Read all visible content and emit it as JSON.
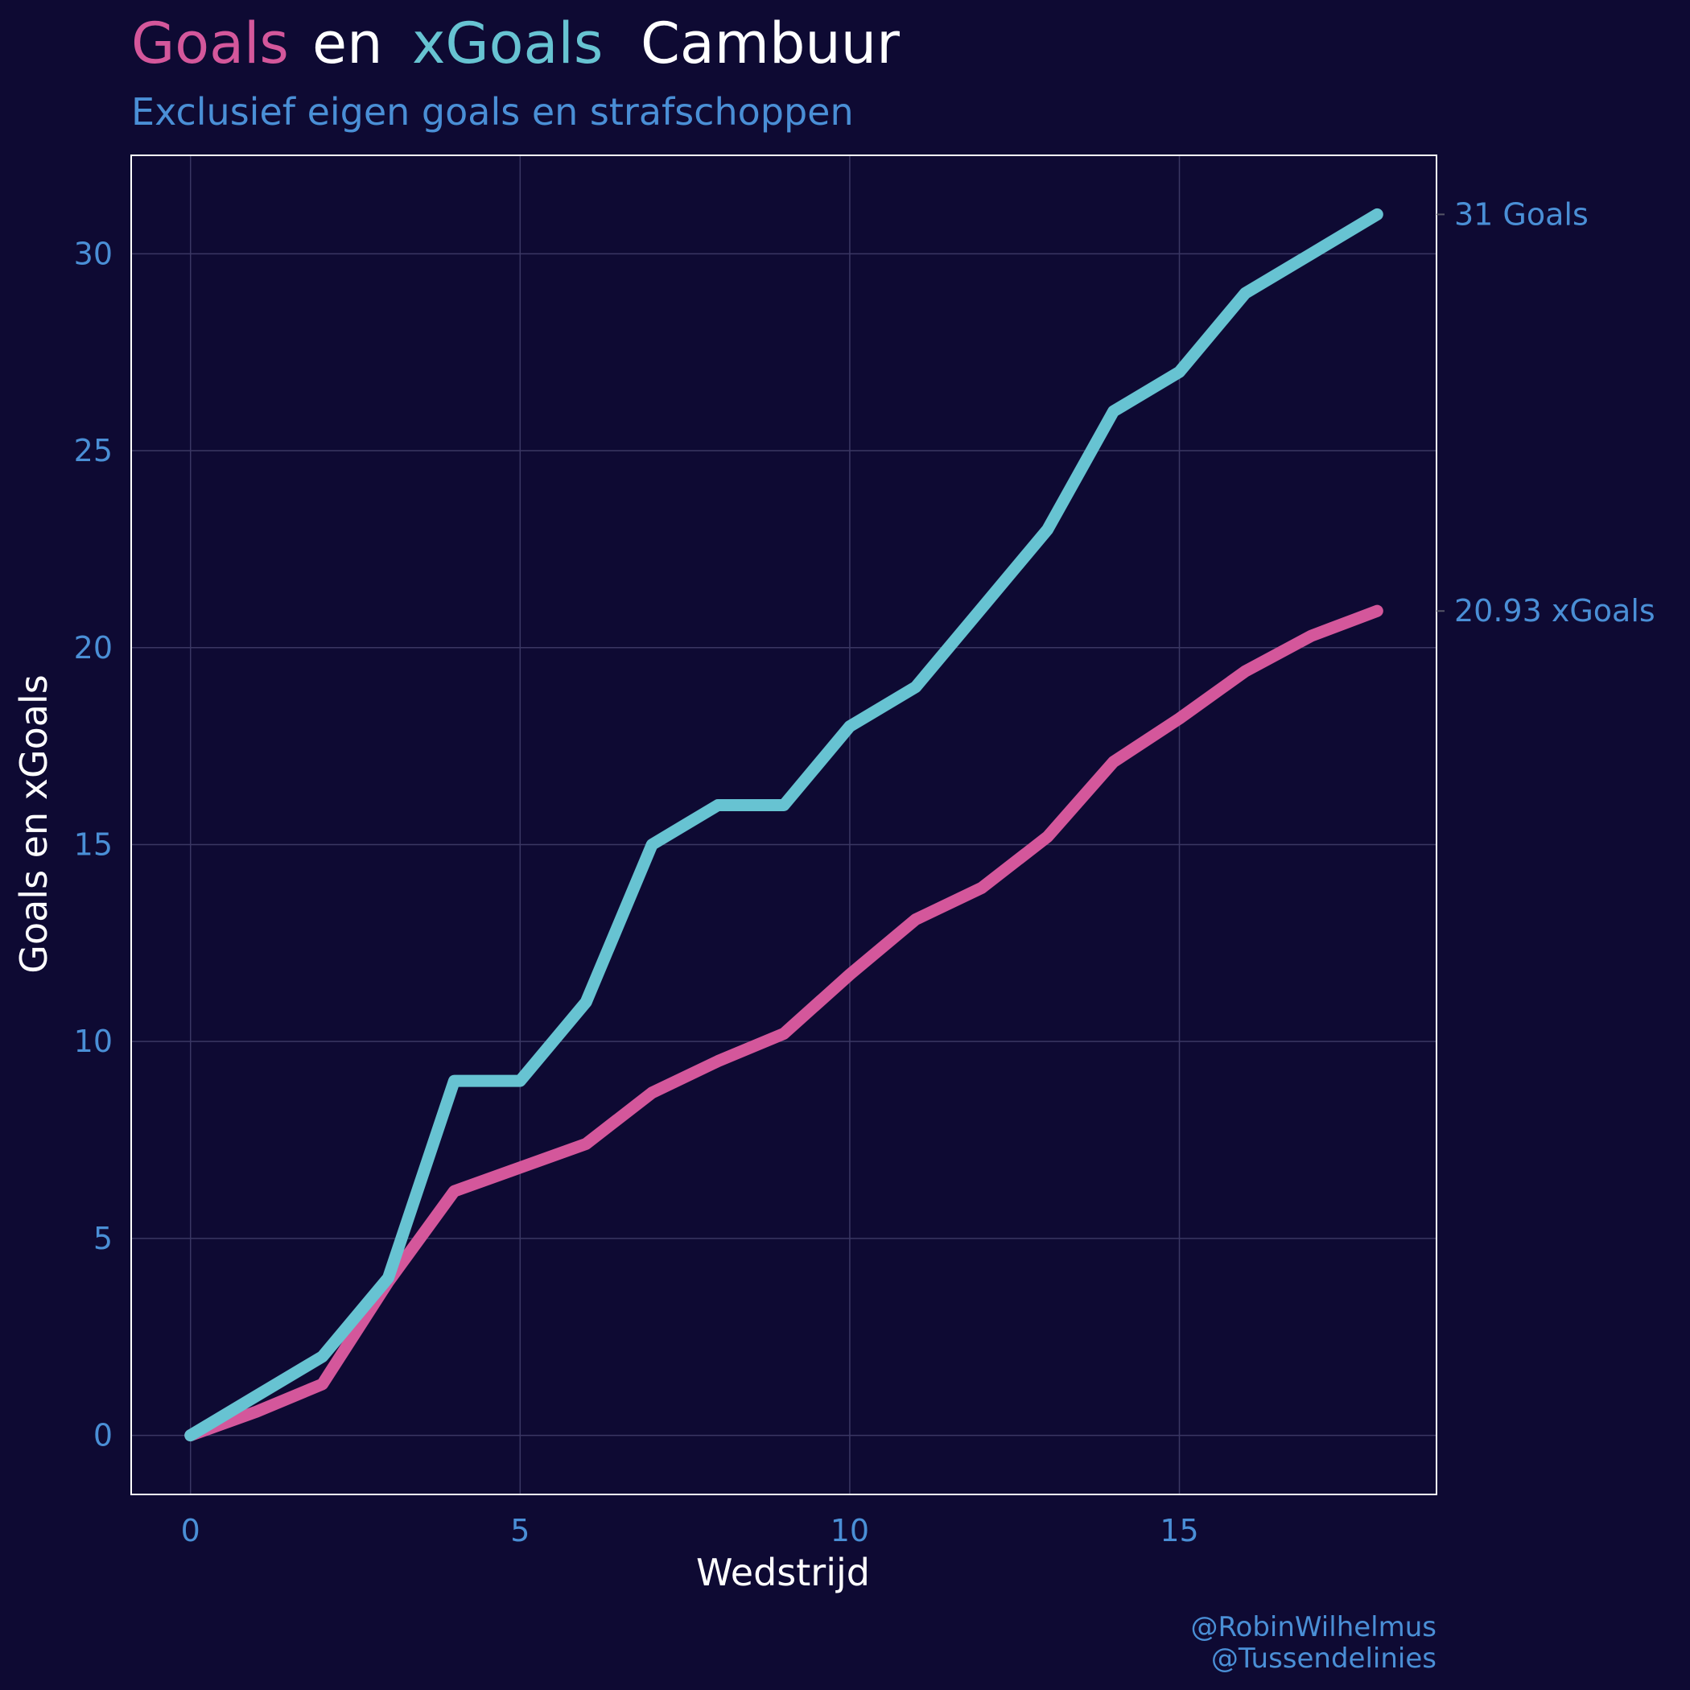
{
  "title": {
    "part_goals": "Goals",
    "part_en": "en",
    "part_xgoals": "xGoals",
    "part_team": "Cambuur"
  },
  "subtitle": "Exclusief eigen goals en strafschoppen",
  "caption": {
    "line1": "@RobinWilhelmus",
    "line2": "@Tussendelinies"
  },
  "colors": {
    "background": "#0e0a33",
    "goals": "#d4579b",
    "xgoals": "#67c3d2",
    "accent_text": "#4a8fd6",
    "white": "#ffffff",
    "grid": "#3a3763"
  },
  "chart_data": {
    "type": "line",
    "title": "Goals en xGoals Cambuur",
    "subtitle": "Exclusief eigen goals en strafschoppen",
    "xlabel": "Wedstrijd",
    "ylabel": "Goals en xGoals",
    "xlim": [
      -0.9,
      18.9
    ],
    "ylim": [
      -1.5,
      32.5
    ],
    "x_ticks": [
      0,
      5,
      10,
      15
    ],
    "y_ticks": [
      0,
      5,
      10,
      15,
      20,
      25,
      30
    ],
    "grid": true,
    "legend": "none (colored words in title)",
    "x": [
      0,
      1,
      2,
      3,
      4,
      5,
      6,
      7,
      8,
      9,
      10,
      11,
      12,
      13,
      14,
      15,
      16,
      17,
      18
    ],
    "series": [
      {
        "name": "Goals",
        "color": "#67c3d2",
        "values": [
          0,
          1,
          2,
          4,
          9,
          9,
          11,
          15,
          16,
          16,
          18,
          19,
          21,
          23,
          26,
          27,
          29,
          30,
          31
        ]
      },
      {
        "name": "xGoals",
        "color": "#d4579b",
        "values": [
          0,
          0.6,
          1.3,
          3.9,
          6.2,
          6.8,
          7.4,
          8.7,
          9.5,
          10.2,
          11.7,
          13.1,
          13.9,
          15.2,
          17.1,
          18.2,
          19.4,
          20.3,
          20.93
        ]
      }
    ],
    "end_labels": [
      {
        "text": "31 Goals",
        "value": 31
      },
      {
        "text": "20.93 xGoals",
        "value": 20.93
      }
    ]
  }
}
